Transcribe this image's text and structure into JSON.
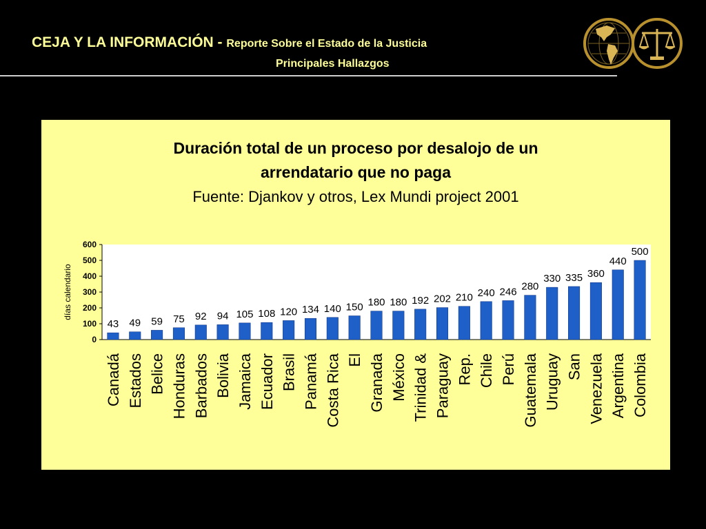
{
  "header": {
    "title_main": "CEJA Y LA INFORMACIÓN - ",
    "title_sub": "Reporte Sobre el Estado de la Justicia",
    "subtitle": "Principales Hallazgos"
  },
  "logos": {
    "globe_icon": "globe-americas",
    "scales_icon": "scales-of-justice"
  },
  "colors": {
    "background": "#000000",
    "header_text": "#ffff99",
    "panel": "#ffff99",
    "plot_area": "#ffffff",
    "bar": "#1f5fc8"
  },
  "chart_data": {
    "type": "bar",
    "title_line1": "Duración total de un proceso por desalojo de un",
    "title_line2": "arrendatario que no paga",
    "source": "Fuente: Djankov y otros, Lex Mundi project 2001",
    "ylabel": "días calendario",
    "xlabel": "",
    "ylim": [
      0,
      600
    ],
    "yticks": [
      0,
      100,
      200,
      300,
      400,
      500,
      600
    ],
    "grid": false,
    "legend": "none",
    "categories": [
      "Canadá",
      "Estados",
      "Belice",
      "Honduras",
      "Barbados",
      "Bolivia",
      "Jamaica",
      "Ecuador",
      "Brasil",
      "Panamá",
      "Costa Rica",
      "El",
      "Granada",
      "México",
      "Trinidad &",
      "Paraguay",
      "Rep.",
      "Chile",
      "Perú",
      "Guatemala",
      "Uruguay",
      "San",
      "Venezuela",
      "Argentina",
      "Colombia"
    ],
    "values": [
      43,
      49,
      59,
      75,
      92,
      94,
      105,
      108,
      120,
      134,
      140,
      150,
      180,
      180,
      192,
      202,
      210,
      240,
      246,
      280,
      330,
      335,
      360,
      440,
      500
    ]
  }
}
